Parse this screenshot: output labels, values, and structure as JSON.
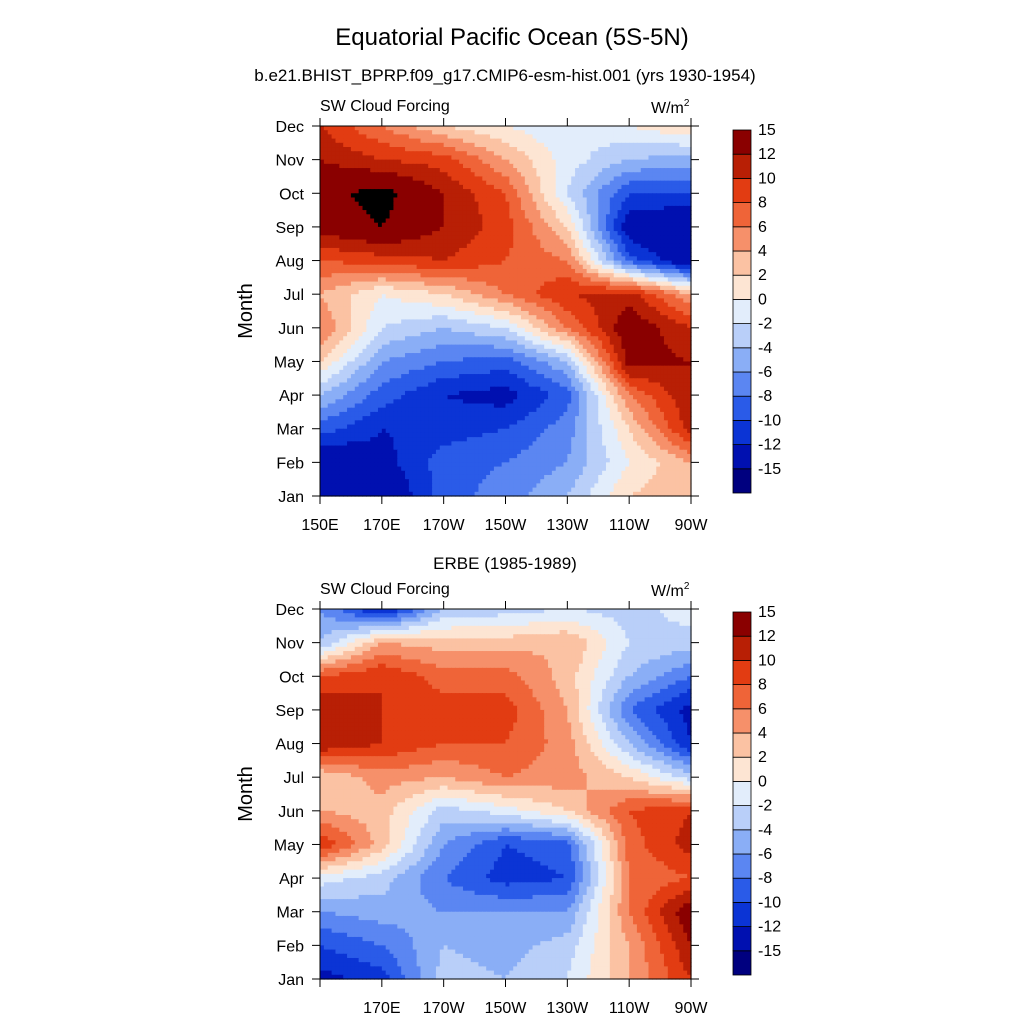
{
  "figure": {
    "title": "Equatorial Pacific Ocean (5S-5N)",
    "subtitle": "b.e21.BHIST_BPRP.f09_g17.CMIP6-esm-hist.001 (yrs 1930-1954)"
  },
  "colorbar": {
    "levels": [
      "-15",
      "-12",
      "-10",
      "-8",
      "-6",
      "-4",
      "-2",
      "0",
      "2",
      "4",
      "6",
      "8",
      "10",
      "12",
      "15"
    ],
    "colors": [
      "#00007f",
      "#0010b0",
      "#0b34d5",
      "#2a5be8",
      "#5b86f2",
      "#8aaef6",
      "#b9cff9",
      "#e2edfb",
      "#fde5d3",
      "#fbc2a3",
      "#f6906a",
      "#ef6438",
      "#e23c12",
      "#b81f05",
      "#8a0000"
    ]
  },
  "chart_data": [
    {
      "type": "heatmap",
      "panel_title": "",
      "left_label": "SW Cloud Forcing",
      "units": "W/m",
      "units_sup": "2",
      "ylabel": "Month",
      "xlim": [
        150,
        270
      ],
      "x_tick_labels": [
        "150E",
        "170E",
        "170W",
        "150W",
        "130W",
        "110W",
        "90W"
      ],
      "y_tick_labels": [
        "Jan",
        "Feb",
        "Mar",
        "Apr",
        "May",
        "Jun",
        "Jul",
        "Aug",
        "Sep",
        "Oct",
        "Nov",
        "Dec"
      ],
      "x": [
        150,
        170,
        190,
        210,
        230,
        250,
        270
      ],
      "z": [
        [
          -15,
          -15,
          -9,
          -7,
          -4,
          2,
          4
        ],
        [
          -15,
          -13,
          -9,
          -8,
          -6,
          0,
          4
        ],
        [
          -9,
          -12,
          -11,
          -10,
          -7,
          2,
          11
        ],
        [
          -4,
          -9,
          -12,
          -13,
          -9,
          6,
          12
        ],
        [
          2,
          -6,
          -8,
          -9,
          -4,
          13,
          12
        ],
        [
          6,
          -2,
          -4,
          -2,
          6,
          14,
          10
        ],
        [
          4,
          0,
          2,
          6,
          10,
          11,
          4
        ],
        [
          8,
          9,
          10,
          8,
          6,
          -9,
          -15
        ],
        [
          13,
          15,
          12,
          9,
          2,
          -14,
          -15
        ],
        [
          14,
          16,
          12,
          8,
          -2,
          -10,
          -10
        ],
        [
          12,
          10,
          9,
          4,
          -1,
          -4,
          -5
        ],
        [
          10,
          6,
          2,
          0,
          -2,
          0,
          2
        ]
      ]
    },
    {
      "type": "heatmap",
      "panel_title": "ERBE (1985-1989)",
      "left_label": "SW Cloud Forcing",
      "units": "W/m",
      "units_sup": "2",
      "ylabel": "Month",
      "xlim": [
        150,
        270
      ],
      "x_tick_labels": [
        "",
        "170E",
        "170W",
        "150W",
        "130W",
        "110W",
        "90W"
      ],
      "y_tick_labels": [
        "Jan",
        "Feb",
        "Mar",
        "Apr",
        "May",
        "Jun",
        "Jul",
        "Aug",
        "Sep",
        "Oct",
        "Nov",
        "Dec"
      ],
      "x": [
        150,
        170,
        190,
        210,
        230,
        250,
        270
      ],
      "z": [
        [
          -13,
          -11,
          -3,
          -4,
          -2,
          4,
          10
        ],
        [
          -10,
          -8,
          -4,
          -5,
          -3,
          4,
          12
        ],
        [
          -6,
          -5,
          -6,
          -6,
          -6,
          6,
          14
        ],
        [
          -1,
          -3,
          -8,
          -11,
          -10,
          6,
          8
        ],
        [
          10,
          3,
          -6,
          -10,
          -9,
          7,
          11
        ],
        [
          4,
          3,
          -3,
          -1,
          2,
          8,
          10
        ],
        [
          2,
          5,
          4,
          6,
          5,
          2,
          -3
        ],
        [
          12,
          10,
          8,
          8,
          5,
          -4,
          -12
        ],
        [
          12,
          10,
          9,
          9,
          4,
          -8,
          -13
        ],
        [
          8,
          10,
          7,
          7,
          3,
          -4,
          -8
        ],
        [
          -4,
          4,
          3,
          3,
          4,
          -2,
          -3
        ],
        [
          -6,
          -13,
          -4,
          -3,
          -2,
          -3,
          -1
        ]
      ]
    }
  ]
}
